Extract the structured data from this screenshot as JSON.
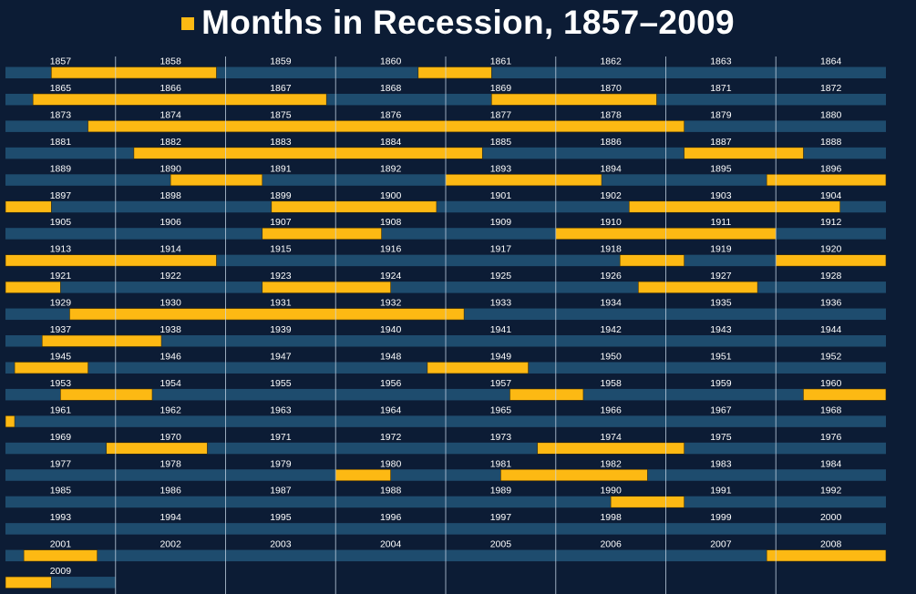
{
  "title": "Months in Recession, 1857–2009",
  "legend": {
    "swatch_color": "#fdb913",
    "meaning": "Months in recession"
  },
  "colors": {
    "background": "#0c1c35",
    "track": "#1e4c6e",
    "recession": "#fdb913",
    "gridline": "#c8d8e8"
  },
  "chart_data": {
    "type": "bar",
    "subtype": "calendar-timeline",
    "title": "Months in Recession, 1857–2009",
    "start_year": 1857,
    "end_year": 2009,
    "years_per_row": 8,
    "last_month_shown": "2009-12",
    "legend": [
      {
        "label": "Months in Recession",
        "color": "#fdb913"
      }
    ],
    "recessions": [
      {
        "start": "1857-06",
        "end": "1858-12"
      },
      {
        "start": "1860-10",
        "end": "1861-06"
      },
      {
        "start": "1865-04",
        "end": "1867-12"
      },
      {
        "start": "1869-06",
        "end": "1870-12"
      },
      {
        "start": "1873-10",
        "end": "1879-03"
      },
      {
        "start": "1882-03",
        "end": "1885-05"
      },
      {
        "start": "1887-03",
        "end": "1888-04"
      },
      {
        "start": "1890-07",
        "end": "1891-05"
      },
      {
        "start": "1893-01",
        "end": "1894-06"
      },
      {
        "start": "1895-12",
        "end": "1897-06"
      },
      {
        "start": "1899-06",
        "end": "1900-12"
      },
      {
        "start": "1902-09",
        "end": "1904-08"
      },
      {
        "start": "1907-05",
        "end": "1908-06"
      },
      {
        "start": "1910-01",
        "end": "1912-01"
      },
      {
        "start": "1913-01",
        "end": "1914-12"
      },
      {
        "start": "1918-08",
        "end": "1919-03"
      },
      {
        "start": "1920-01",
        "end": "1921-07"
      },
      {
        "start": "1923-05",
        "end": "1924-07"
      },
      {
        "start": "1926-10",
        "end": "1927-11"
      },
      {
        "start": "1929-08",
        "end": "1933-03"
      },
      {
        "start": "1937-05",
        "end": "1938-06"
      },
      {
        "start": "1945-02",
        "end": "1945-10"
      },
      {
        "start": "1948-11",
        "end": "1949-10"
      },
      {
        "start": "1953-07",
        "end": "1954-05"
      },
      {
        "start": "1957-08",
        "end": "1958-04"
      },
      {
        "start": "1960-04",
        "end": "1961-02"
      },
      {
        "start": "1969-12",
        "end": "1970-11"
      },
      {
        "start": "1973-11",
        "end": "1975-03"
      },
      {
        "start": "1980-01",
        "end": "1980-07"
      },
      {
        "start": "1981-07",
        "end": "1982-11"
      },
      {
        "start": "1990-07",
        "end": "1991-03"
      },
      {
        "start": "2001-03",
        "end": "2001-11"
      },
      {
        "start": "2007-12",
        "end": "2009-06"
      }
    ],
    "grid": true,
    "xlabel": "",
    "ylabel": ""
  }
}
